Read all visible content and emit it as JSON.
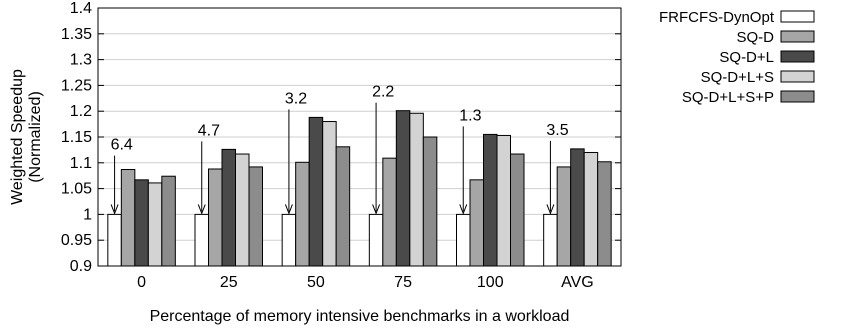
{
  "chart_data": {
    "type": "bar",
    "xlabel": "Percentage of memory intensive benchmarks in a workload",
    "ylabel_lines": [
      "Weighted Speedup",
      "(Normalized)"
    ],
    "ylim": [
      0.9,
      1.4
    ],
    "yticks": [
      "0.9",
      "0.95",
      "1",
      "1.05",
      "1.1",
      "1.15",
      "1.2",
      "1.25",
      "1.3",
      "1.35",
      "1.4"
    ],
    "grid": "horizontal",
    "legend_position": "right",
    "categories": [
      "0",
      "25",
      "50",
      "75",
      "100",
      "AVG"
    ],
    "series": [
      {
        "name": "FRFCFS-DynOpt",
        "color": "#ffffff",
        "values": [
          1.0,
          1.0,
          1.0,
          1.0,
          1.0,
          1.0
        ]
      },
      {
        "name": "SQ-D",
        "color": "#a6a6a6",
        "values": [
          1.087,
          1.088,
          1.101,
          1.109,
          1.067,
          1.092
        ]
      },
      {
        "name": "SQ-D+L",
        "color": "#4a4a4a",
        "values": [
          1.067,
          1.126,
          1.188,
          1.201,
          1.155,
          1.127
        ]
      },
      {
        "name": "SQ-D+L+S",
        "color": "#d3d3d3",
        "values": [
          1.061,
          1.117,
          1.18,
          1.196,
          1.153,
          1.12
        ]
      },
      {
        "name": "SQ-D+L+S+P",
        "color": "#8c8c8c",
        "values": [
          1.074,
          1.092,
          1.131,
          1.15,
          1.117,
          1.102
        ]
      }
    ],
    "annotations": [
      "6.4",
      "4.7",
      "3.2",
      "2.2",
      "1.3",
      "3.5"
    ]
  }
}
